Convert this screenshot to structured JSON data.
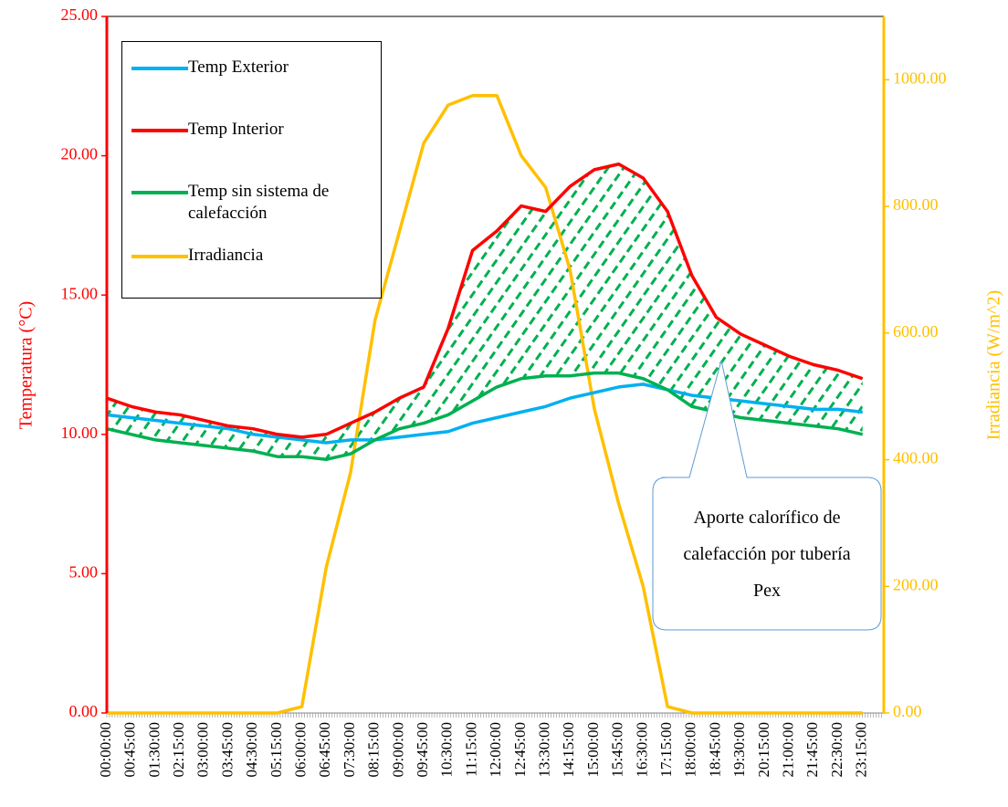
{
  "chart_data": {
    "type": "line",
    "ylabel": "Temperatura (°C)",
    "y2label": "Irradiancia (W/m^2)",
    "annotation": "Aporte calorífico de calefacción por tubería Pex",
    "categories": [
      "00:00:00",
      "00:45:00",
      "01:30:00",
      "02:15:00",
      "03:00:00",
      "03:45:00",
      "04:30:00",
      "05:15:00",
      "06:00:00",
      "06:45:00",
      "07:30:00",
      "08:15:00",
      "09:00:00",
      "09:45:00",
      "10:30:00",
      "11:15:00",
      "12:00:00",
      "12:45:00",
      "13:30:00",
      "14:15:00",
      "15:00:00",
      "15:45:00",
      "16:30:00",
      "17:15:00",
      "18:00:00",
      "18:45:00",
      "19:30:00",
      "20:15:00",
      "21:00:00",
      "21:45:00",
      "22:30:00",
      "23:15:00"
    ],
    "ylim": [
      0,
      25
    ],
    "yticks": [
      {
        "value": 0,
        "label": "0.00"
      },
      {
        "value": 5,
        "label": "5.00"
      },
      {
        "value": 10,
        "label": "10.00"
      },
      {
        "value": 15,
        "label": "15.00"
      },
      {
        "value": 20,
        "label": "20.00"
      },
      {
        "value": 25,
        "label": "25.00"
      }
    ],
    "y2lim": [
      0,
      1100
    ],
    "y2ticks": [
      {
        "value": 0,
        "label": "0.00"
      },
      {
        "value": 200,
        "label": "200.00"
      },
      {
        "value": 400,
        "label": "400.00"
      },
      {
        "value": 600,
        "label": "600.00"
      },
      {
        "value": 800,
        "label": "800.00"
      },
      {
        "value": 1000,
        "label": "1000.00"
      }
    ],
    "legend": "upper left",
    "series": [
      {
        "name": "Temp Exterior",
        "color": "#00b0f0",
        "values": [
          10.7,
          10.6,
          10.5,
          10.4,
          10.3,
          10.2,
          10.0,
          9.9,
          9.8,
          9.7,
          9.8,
          9.8,
          9.9,
          10.0,
          10.1,
          10.4,
          10.6,
          10.8,
          11.0,
          11.3,
          11.5,
          11.7,
          11.8,
          11.6,
          11.4,
          11.3,
          11.2,
          11.1,
          11.0,
          10.9,
          10.9,
          10.8
        ]
      },
      {
        "name": "Temp Interior",
        "color": "#ff0000",
        "values": [
          11.3,
          11.0,
          10.8,
          10.7,
          10.5,
          10.3,
          10.2,
          10.0,
          9.9,
          10.0,
          10.4,
          10.8,
          11.3,
          11.7,
          13.8,
          16.6,
          17.3,
          18.2,
          18.0,
          18.9,
          19.5,
          19.7,
          19.2,
          18.0,
          15.7,
          14.2,
          13.6,
          13.2,
          12.8,
          12.5,
          12.3,
          12.0
        ]
      },
      {
        "name": "Temp sin sistema de calefacción",
        "color": "#00b050",
        "values": [
          10.2,
          10.0,
          9.8,
          9.7,
          9.6,
          9.5,
          9.4,
          9.2,
          9.2,
          9.1,
          9.3,
          9.8,
          10.2,
          10.4,
          10.7,
          11.2,
          11.7,
          12.0,
          12.1,
          12.1,
          12.2,
          12.2,
          12.0,
          11.6,
          11.0,
          10.8,
          10.6,
          10.5,
          10.4,
          10.3,
          10.2,
          10.0
        ]
      },
      {
        "name": "Irradiancia",
        "color": "#ffc000",
        "axis": "y2",
        "values": [
          0,
          0,
          0,
          0,
          0,
          0,
          0,
          0,
          10,
          230,
          380,
          620,
          760,
          900,
          960,
          975,
          975,
          880,
          830,
          700,
          480,
          330,
          200,
          10,
          0,
          0,
          0,
          0,
          0,
          0,
          0,
          0
        ]
      }
    ]
  }
}
